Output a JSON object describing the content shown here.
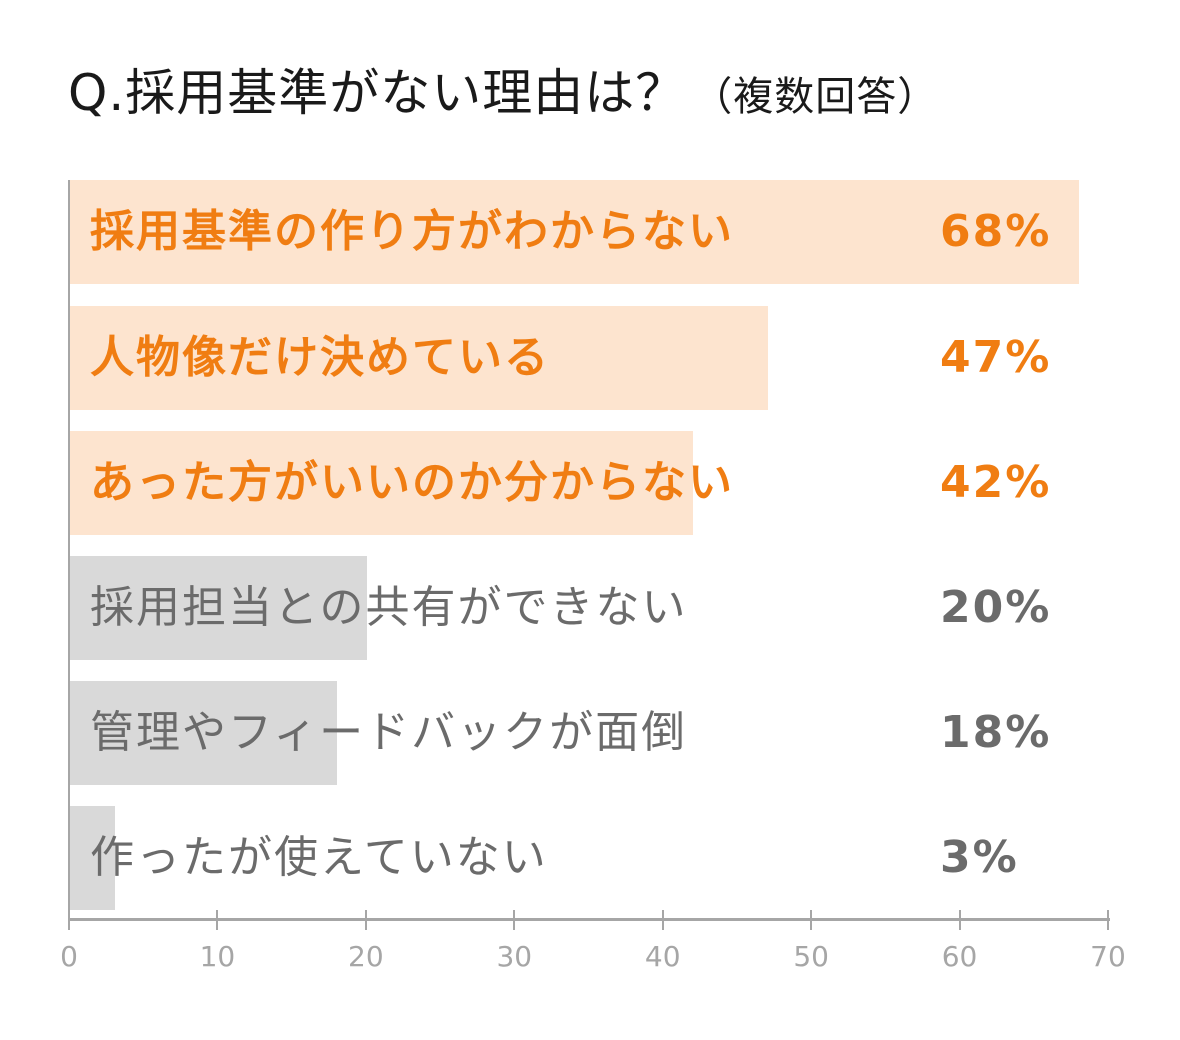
{
  "title": {
    "main": "Q.採用基準がない理由は？",
    "sub": "（複数回答）"
  },
  "colors": {
    "highlight_bar": "#fde4cf",
    "highlight_text": "#f07d12",
    "gray_bar": "#d9d9d9",
    "gray_text": "#6b6b6b",
    "axis": "#a6a6a6"
  },
  "bars": [
    {
      "label": "採用基準の作り方がわからない",
      "value": 68,
      "value_label": "68%",
      "highlight": true
    },
    {
      "label": "人物像だけ決めている",
      "value": 47,
      "value_label": "47%",
      "highlight": true
    },
    {
      "label": "あった方がいいのか分からない",
      "value": 42,
      "value_label": "42%",
      "highlight": true
    },
    {
      "label": "採用担当との共有ができない",
      "value": 20,
      "value_label": "20%",
      "highlight": false
    },
    {
      "label": "管理やフィードバックが面倒",
      "value": 18,
      "value_label": "18%",
      "highlight": false
    },
    {
      "label": "作ったが使えていない",
      "value": 3,
      "value_label": "3%",
      "highlight": false
    }
  ],
  "axis": {
    "ticks": [
      "0",
      "10",
      "20",
      "30",
      "40",
      "50",
      "60",
      "70"
    ]
  },
  "chart_data": {
    "type": "bar",
    "orientation": "horizontal",
    "title": "Q.採用基準がない理由は？（複数回答）",
    "categories": [
      "採用基準の作り方がわからない",
      "人物像だけ決めている",
      "あった方がいいのか分からない",
      "採用担当との共有ができない",
      "管理やフィードバックが面倒",
      "作ったが使えていない"
    ],
    "values": [
      68,
      47,
      42,
      20,
      18,
      3
    ],
    "unit": "%",
    "xlabel": "",
    "ylabel": "",
    "xlim": [
      0,
      70
    ],
    "xticks": [
      0,
      10,
      20,
      30,
      40,
      50,
      60,
      70
    ],
    "grid": false,
    "legend": null,
    "highlighted_categories": [
      "採用基準の作り方がわからない",
      "人物像だけ決めている",
      "あった方がいいのか分からない"
    ]
  }
}
